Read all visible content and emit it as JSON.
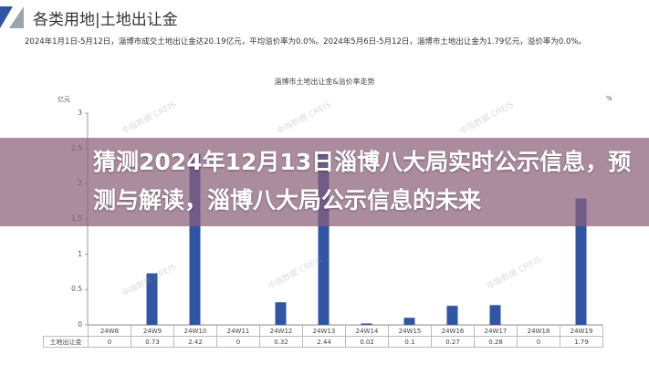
{
  "header": {
    "title": "各类用地|土地出让金"
  },
  "description": "2024年1月1日-5月12日，淄博市成交土地出让金达20.19亿元，平均溢价率为0.0%。2024年5月6日-5月12日，淄博市土地出让金为1.79亿元，溢价率为0.0%。",
  "watermark": "中指数据 CREIS",
  "overlay": {
    "title": "猜测2024年12月13日淄博八大局实时公示信息，预测与解读，淄博八大局公示信息的未来"
  },
  "colors": {
    "bar": "#2f55a4",
    "overlay": "#8a5f7a"
  },
  "chart_data": {
    "type": "bar",
    "title": "淄博市土地出让金&溢价率走势",
    "ylabel": "亿元",
    "y2label": "%",
    "ylim": [
      0,
      3
    ],
    "yticks": [
      "0",
      "0.5",
      "1",
      "1.5",
      "2",
      "2.5",
      "3"
    ],
    "categories": [
      "24W8",
      "24W9",
      "24W10",
      "24W11",
      "24W12",
      "24W13",
      "24W14",
      "24W15",
      "24W16",
      "24W17",
      "24W18",
      "24W19"
    ],
    "series": [
      {
        "name": "土地出让金",
        "values": [
          0,
          0.73,
          2.42,
          0,
          0.32,
          2.44,
          0.02,
          0.1,
          0.27,
          0.28,
          0,
          1.79
        ],
        "labels": [
          "0",
          "0.73",
          "2.42",
          "0",
          "0.32",
          "2.44",
          "0.02",
          "0.1",
          "0.27",
          "0.28",
          "0",
          "1.79"
        ]
      }
    ]
  }
}
